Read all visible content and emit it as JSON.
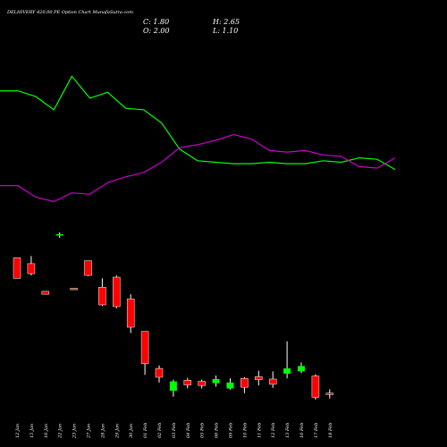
{
  "header": {
    "title": "DELHIVERY 420.00 PE Option Chart MunafaSutra.com",
    "close_text": "C: 1.80",
    "open_text": "O: 2.00",
    "high_text": "H: 2.65",
    "low_text": "L: 1.10"
  },
  "colors": {
    "background": "#000000",
    "bullish": "#00ff00",
    "bearish": "#ff0000",
    "wick": "#ffffff",
    "line_green": "#00ff00",
    "line_purple": "#cc00cc",
    "text": "#ffffff"
  },
  "chart_data": {
    "type": "candlestick",
    "title": "DELHIVERY 420.00 PE Option Chart MunafaSutra.com",
    "categories": [
      "12 Jan",
      "15 Jan",
      "16 Jan",
      "22 Jan",
      "23 Jan",
      "27 Jan",
      "28 Jan",
      "29 Jan",
      "30 Jan",
      "01 Feb",
      "02 Feb",
      "03 Feb",
      "04 Feb",
      "05 Feb",
      "06 Feb",
      "09 Feb",
      "10 Feb",
      "11 Feb",
      "12 Feb",
      "13 Feb",
      "16 Feb",
      "17 Feb",
      "18 Feb"
    ],
    "candles": [
      {
        "open": 25.0,
        "high": 25.0,
        "low": 21.5,
        "close": 21.5
      },
      {
        "open": 24.0,
        "high": 25.3,
        "low": 22.0,
        "close": 22.3
      },
      {
        "open": 19.3,
        "high": 19.3,
        "low": 18.8,
        "close": 18.8
      },
      {
        "open": 29.0,
        "high": 29.3,
        "low": 28.4,
        "close": 29.0
      },
      {
        "open": 19.8,
        "high": 19.8,
        "low": 19.6,
        "close": 19.7
      },
      {
        "open": 24.5,
        "high": 24.5,
        "low": 21.9,
        "close": 22.0
      },
      {
        "open": 20.0,
        "high": 21.5,
        "low": 16.8,
        "close": 17.0
      },
      {
        "open": 21.7,
        "high": 22.0,
        "low": 16.4,
        "close": 16.7
      },
      {
        "open": 18.0,
        "high": 18.8,
        "low": 12.2,
        "close": 13.2
      },
      {
        "open": 12.5,
        "high": 12.5,
        "low": 5.1,
        "close": 7.0
      },
      {
        "open": 6.2,
        "high": 6.7,
        "low": 3.8,
        "close": 4.7
      },
      {
        "open": 2.4,
        "high": 4.3,
        "low": 1.4,
        "close": 4.0
      },
      {
        "open": 4.2,
        "high": 4.6,
        "low": 2.8,
        "close": 3.4
      },
      {
        "open": 4.0,
        "high": 4.3,
        "low": 2.8,
        "close": 3.3
      },
      {
        "open": 3.7,
        "high": 5.0,
        "low": 3.1,
        "close": 4.4
      },
      {
        "open": 2.8,
        "high": 4.5,
        "low": 2.6,
        "close": 3.8
      },
      {
        "open": 4.5,
        "high": 4.7,
        "low": 2.0,
        "close": 3.0
      },
      {
        "open": 4.8,
        "high": 5.8,
        "low": 3.3,
        "close": 4.3
      },
      {
        "open": 4.4,
        "high": 5.7,
        "low": 2.9,
        "close": 3.5
      },
      {
        "open": 5.3,
        "high": 10.8,
        "low": 4.5,
        "close": 6.2
      },
      {
        "open": 5.7,
        "high": 7.2,
        "low": 5.4,
        "close": 6.6
      },
      {
        "open": 4.9,
        "high": 5.2,
        "low": 0.9,
        "close": 1.3
      },
      {
        "open": 2.0,
        "high": 2.65,
        "low": 1.1,
        "close": 1.8
      }
    ],
    "series": [
      {
        "color": "#00ff00",
        "values": [
          80,
          80,
          76,
          67,
          90,
          75,
          79,
          68,
          67,
          58,
          40,
          32,
          31,
          30,
          30,
          31,
          30,
          30,
          32,
          31,
          34,
          33,
          26
        ]
      },
      {
        "color": "#cc00cc",
        "values": [
          15,
          15,
          7,
          4,
          10,
          9,
          17,
          21,
          24,
          31,
          41,
          43,
          46,
          50,
          47,
          39,
          38,
          39,
          36,
          35,
          28,
          27,
          34
        ]
      }
    ]
  }
}
